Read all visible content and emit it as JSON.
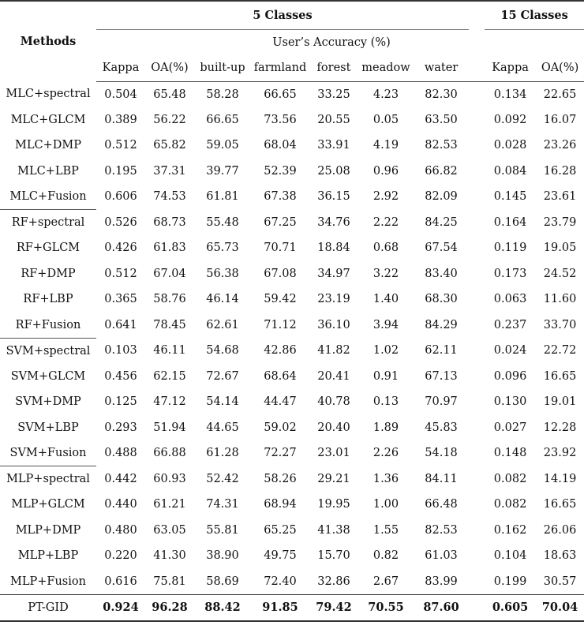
{
  "header": {
    "methods_label": "Methods",
    "group_5": "5 Classes",
    "group_15": "15 Classes",
    "users_accuracy": "User’s Accuracy (%)",
    "columns": [
      "Kappa",
      "OA(%)",
      "built-up",
      "farmland",
      "forest",
      "meadow",
      "water",
      "Kappa",
      "OA(%)"
    ]
  },
  "rows": [
    {
      "method": "MLC+spectral",
      "v": [
        "0.504",
        "65.48",
        "58.28",
        "66.65",
        "33.25",
        "4.23",
        "82.30",
        "0.134",
        "22.65"
      ]
    },
    {
      "method": "MLC+GLCM",
      "v": [
        "0.389",
        "56.22",
        "66.65",
        "73.56",
        "20.55",
        "0.05",
        "63.50",
        "0.092",
        "16.07"
      ]
    },
    {
      "method": "MLC+DMP",
      "v": [
        "0.512",
        "65.82",
        "59.05",
        "68.04",
        "33.91",
        "4.19",
        "82.53",
        "0.028",
        "23.26"
      ]
    },
    {
      "method": "MLC+LBP",
      "v": [
        "0.195",
        "37.31",
        "39.77",
        "52.39",
        "25.08",
        "0.96",
        "66.82",
        "0.084",
        "16.28"
      ]
    },
    {
      "method": "MLC+Fusion",
      "v": [
        "0.606",
        "74.53",
        "61.81",
        "67.38",
        "36.15",
        "2.92",
        "82.09",
        "0.145",
        "23.61"
      ]
    },
    {
      "method": "RF+spectral",
      "v": [
        "0.526",
        "68.73",
        "55.48",
        "67.25",
        "34.76",
        "2.22",
        "84.25",
        "0.164",
        "23.79"
      ]
    },
    {
      "method": "RF+GLCM",
      "v": [
        "0.426",
        "61.83",
        "65.73",
        "70.71",
        "18.84",
        "0.68",
        "67.54",
        "0.119",
        "19.05"
      ]
    },
    {
      "method": "RF+DMP",
      "v": [
        "0.512",
        "67.04",
        "56.38",
        "67.08",
        "34.97",
        "3.22",
        "83.40",
        "0.173",
        "24.52"
      ]
    },
    {
      "method": "RF+LBP",
      "v": [
        "0.365",
        "58.76",
        "46.14",
        "59.42",
        "23.19",
        "1.40",
        "68.30",
        "0.063",
        "11.60"
      ]
    },
    {
      "method": "RF+Fusion",
      "v": [
        "0.641",
        "78.45",
        "62.61",
        "71.12",
        "36.10",
        "3.94",
        "84.29",
        "0.237",
        "33.70"
      ]
    },
    {
      "method": "SVM+spectral",
      "v": [
        "0.103",
        "46.11",
        "54.68",
        "42.86",
        "41.82",
        "1.02",
        "62.11",
        "0.024",
        "22.72"
      ]
    },
    {
      "method": "SVM+GLCM",
      "v": [
        "0.456",
        "62.15",
        "72.67",
        "68.64",
        "20.41",
        "0.91",
        "67.13",
        "0.096",
        "16.65"
      ]
    },
    {
      "method": "SVM+DMP",
      "v": [
        "0.125",
        "47.12",
        "54.14",
        "44.47",
        "40.78",
        "0.13",
        "70.97",
        "0.130",
        "19.01"
      ]
    },
    {
      "method": "SVM+LBP",
      "v": [
        "0.293",
        "51.94",
        "44.65",
        "59.02",
        "20.40",
        "1.89",
        "45.83",
        "0.027",
        "12.28"
      ]
    },
    {
      "method": "SVM+Fusion",
      "v": [
        "0.488",
        "66.88",
        "61.28",
        "72.27",
        "23.01",
        "2.26",
        "54.18",
        "0.148",
        "23.92"
      ]
    },
    {
      "method": "MLP+spectral",
      "v": [
        "0.442",
        "60.93",
        "52.42",
        "58.26",
        "29.21",
        "1.36",
        "84.11",
        "0.082",
        "14.19"
      ]
    },
    {
      "method": "MLP+GLCM",
      "v": [
        "0.440",
        "61.21",
        "74.31",
        "68.94",
        "19.95",
        "1.00",
        "66.48",
        "0.082",
        "16.65"
      ]
    },
    {
      "method": "MLP+DMP",
      "v": [
        "0.480",
        "63.05",
        "55.81",
        "65.25",
        "41.38",
        "1.55",
        "82.53",
        "0.162",
        "26.06"
      ]
    },
    {
      "method": "MLP+LBP",
      "v": [
        "0.220",
        "41.30",
        "38.90",
        "49.75",
        "15.70",
        "0.82",
        "61.03",
        "0.104",
        "18.63"
      ]
    },
    {
      "method": "MLP+Fusion",
      "v": [
        "0.616",
        "75.81",
        "58.69",
        "72.40",
        "32.86",
        "2.67",
        "83.99",
        "0.199",
        "30.57"
      ]
    }
  ],
  "final": {
    "method": "PT-GID",
    "v": [
      "0.924",
      "96.28",
      "88.42",
      "91.85",
      "79.42",
      "70.55",
      "87.60",
      "0.605",
      "70.04"
    ]
  }
}
